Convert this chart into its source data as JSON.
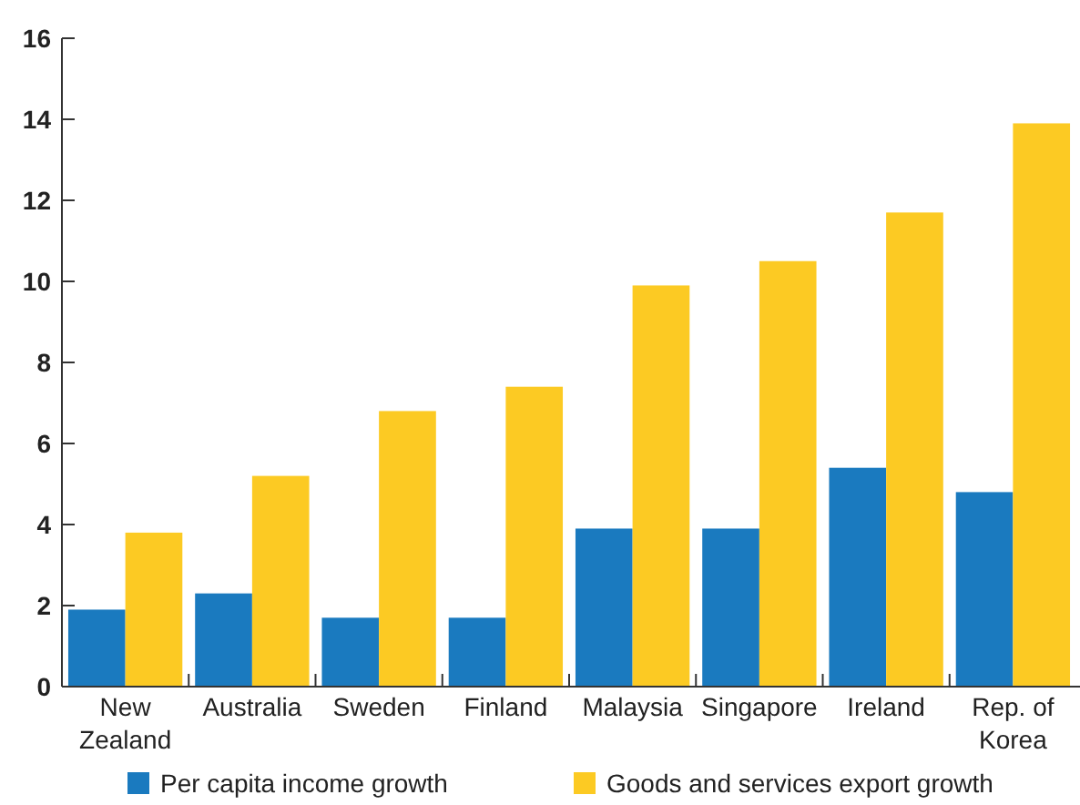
{
  "chart_data": {
    "type": "bar",
    "categories": [
      "New\nZealand",
      "Australia",
      "Sweden",
      "Finland",
      "Malaysia",
      "Singapore",
      "Ireland",
      "Rep. of\nKorea"
    ],
    "series": [
      {
        "name": "Per capita income growth",
        "color": "#1a7abf",
        "values": [
          1.9,
          2.3,
          1.7,
          1.7,
          3.9,
          3.9,
          5.4,
          4.8
        ]
      },
      {
        "name": "Goods and services export growth",
        "color": "#fcca23",
        "values": [
          3.8,
          5.2,
          6.8,
          7.4,
          9.9,
          10.5,
          11.7,
          13.9
        ]
      }
    ],
    "ylim": [
      0,
      16
    ],
    "yticks": [
      0,
      2,
      4,
      6,
      8,
      10,
      12,
      14,
      16
    ],
    "grid": false,
    "legend": "bottom"
  }
}
